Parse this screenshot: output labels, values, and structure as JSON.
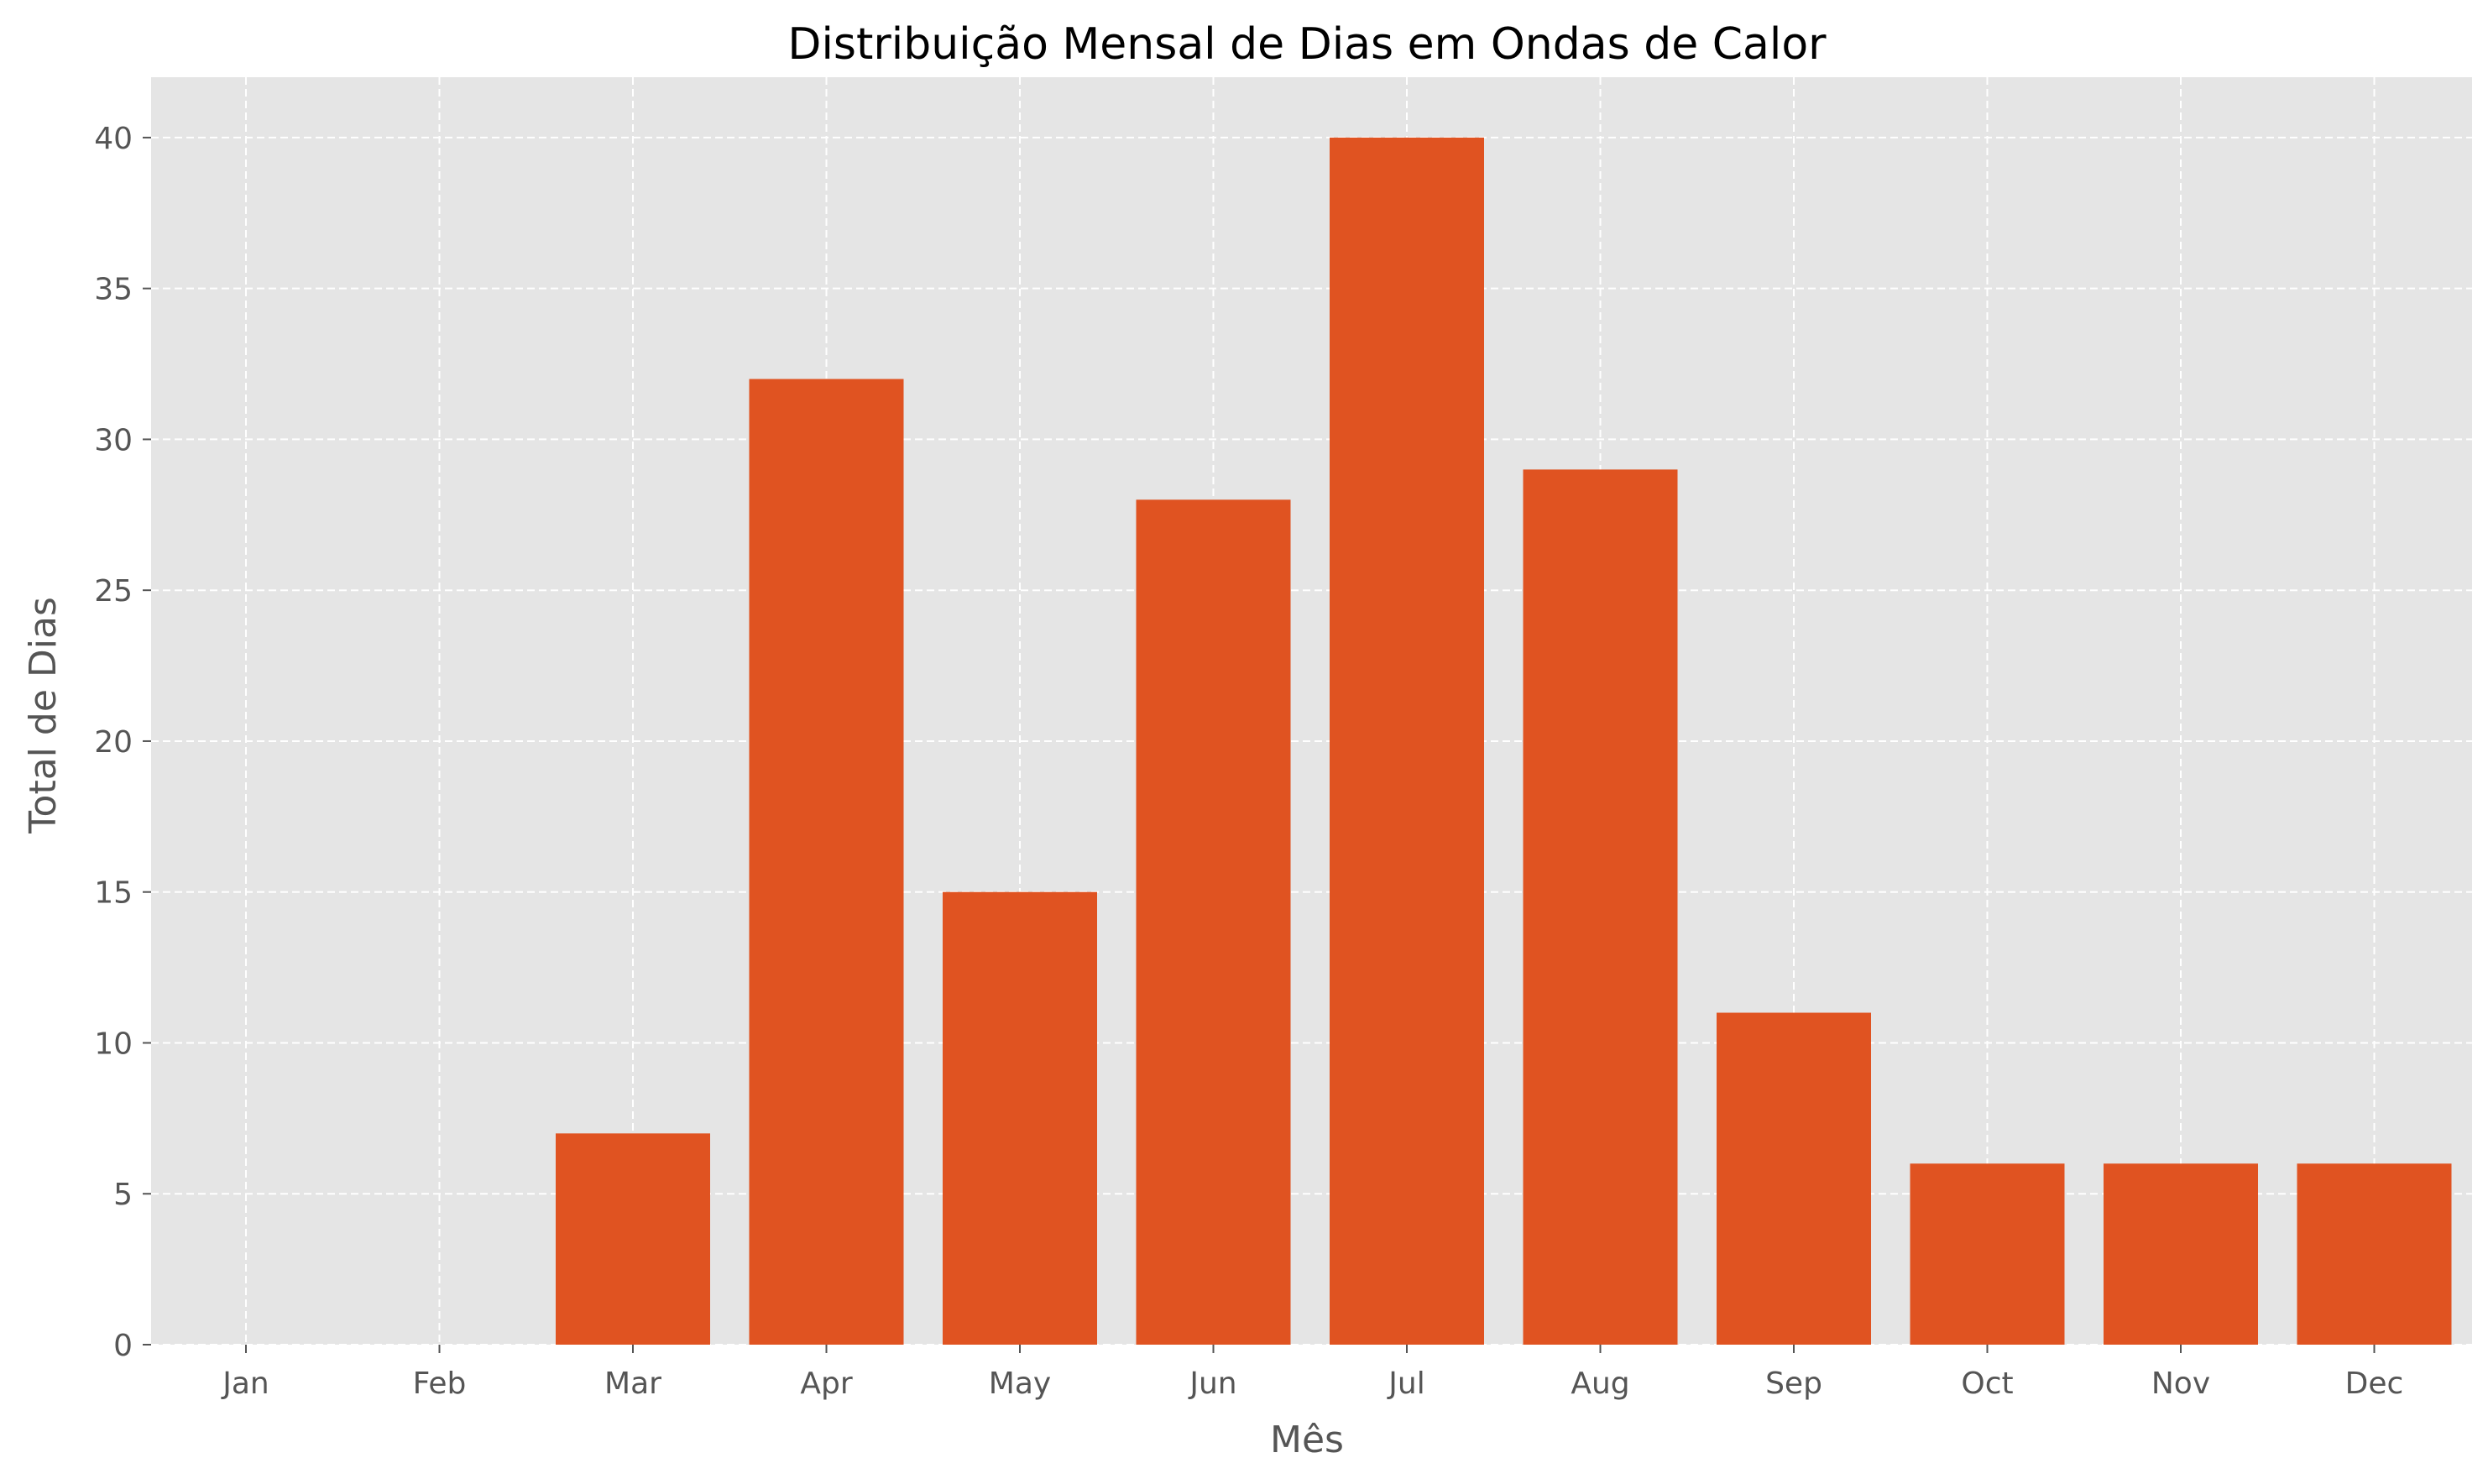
{
  "chart_data": {
    "type": "bar",
    "title": "Distribuição Mensal de Dias em Ondas de Calor",
    "xlabel": "Mês",
    "ylabel": "Total de Dias",
    "categories": [
      "Jan",
      "Feb",
      "Mar",
      "Apr",
      "May",
      "Jun",
      "Jul",
      "Aug",
      "Sep",
      "Oct",
      "Nov",
      "Dec"
    ],
    "values": [
      0,
      0,
      7,
      32,
      15,
      28,
      40,
      29,
      11,
      6,
      6,
      6
    ],
    "ylim": [
      0,
      42
    ],
    "yticks": [
      0,
      5,
      10,
      15,
      20,
      25,
      30,
      35,
      40
    ],
    "grid": true,
    "grid_style": "dashed",
    "legend": "none"
  },
  "colors": {
    "bar": "#e05321",
    "plot_background": "#e5e5e5",
    "grid": "#ffffff",
    "tick_text": "#555555",
    "title_text": "#000000",
    "label_text": "#555555"
  }
}
